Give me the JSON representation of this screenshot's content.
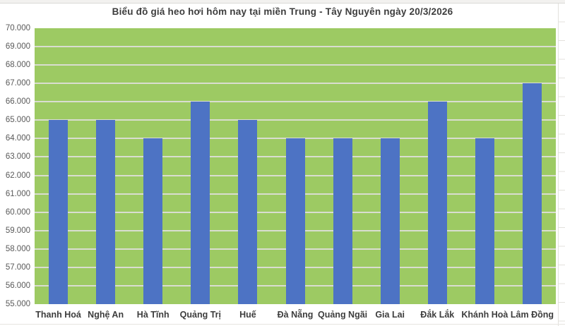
{
  "chart_data": {
    "type": "bar",
    "title": "Biểu đồ giá heo hơi hôm nay tại miền Trung - Tây Nguyên ngày 20/3/2026",
    "categories": [
      "Thanh Hoá",
      "Nghệ An",
      "Hà Tĩnh",
      "Quảng Trị",
      "Huế",
      "Đà Nẵng",
      "Quảng Ngãi",
      "Gia Lai",
      "Đắk Lắk",
      "Khánh Hoà",
      "Lâm Đồng"
    ],
    "values": [
      65000,
      65000,
      64000,
      66000,
      65000,
      64000,
      64000,
      64000,
      66000,
      64000,
      67000
    ],
    "xlabel": "",
    "ylabel": "",
    "ylim": [
      55000,
      70000
    ],
    "ytick_step": 1000,
    "ytick_labels": [
      "55.000",
      "56.000",
      "57.000",
      "58.000",
      "59.000",
      "60.000",
      "61.000",
      "62.000",
      "63.000",
      "64.000",
      "65.000",
      "66.000",
      "67.000",
      "68.000",
      "69.000",
      "70.000"
    ],
    "grid": true,
    "legend": "none",
    "colors": {
      "bar": "#4d73c4",
      "plot_background": "#9dca63",
      "gridline": "#d9ddd0",
      "title_text": "#3d3d3d",
      "ytick_text": "#595959",
      "xtick_text": "#3d3d3d",
      "page_background": "#ffffff"
    }
  }
}
